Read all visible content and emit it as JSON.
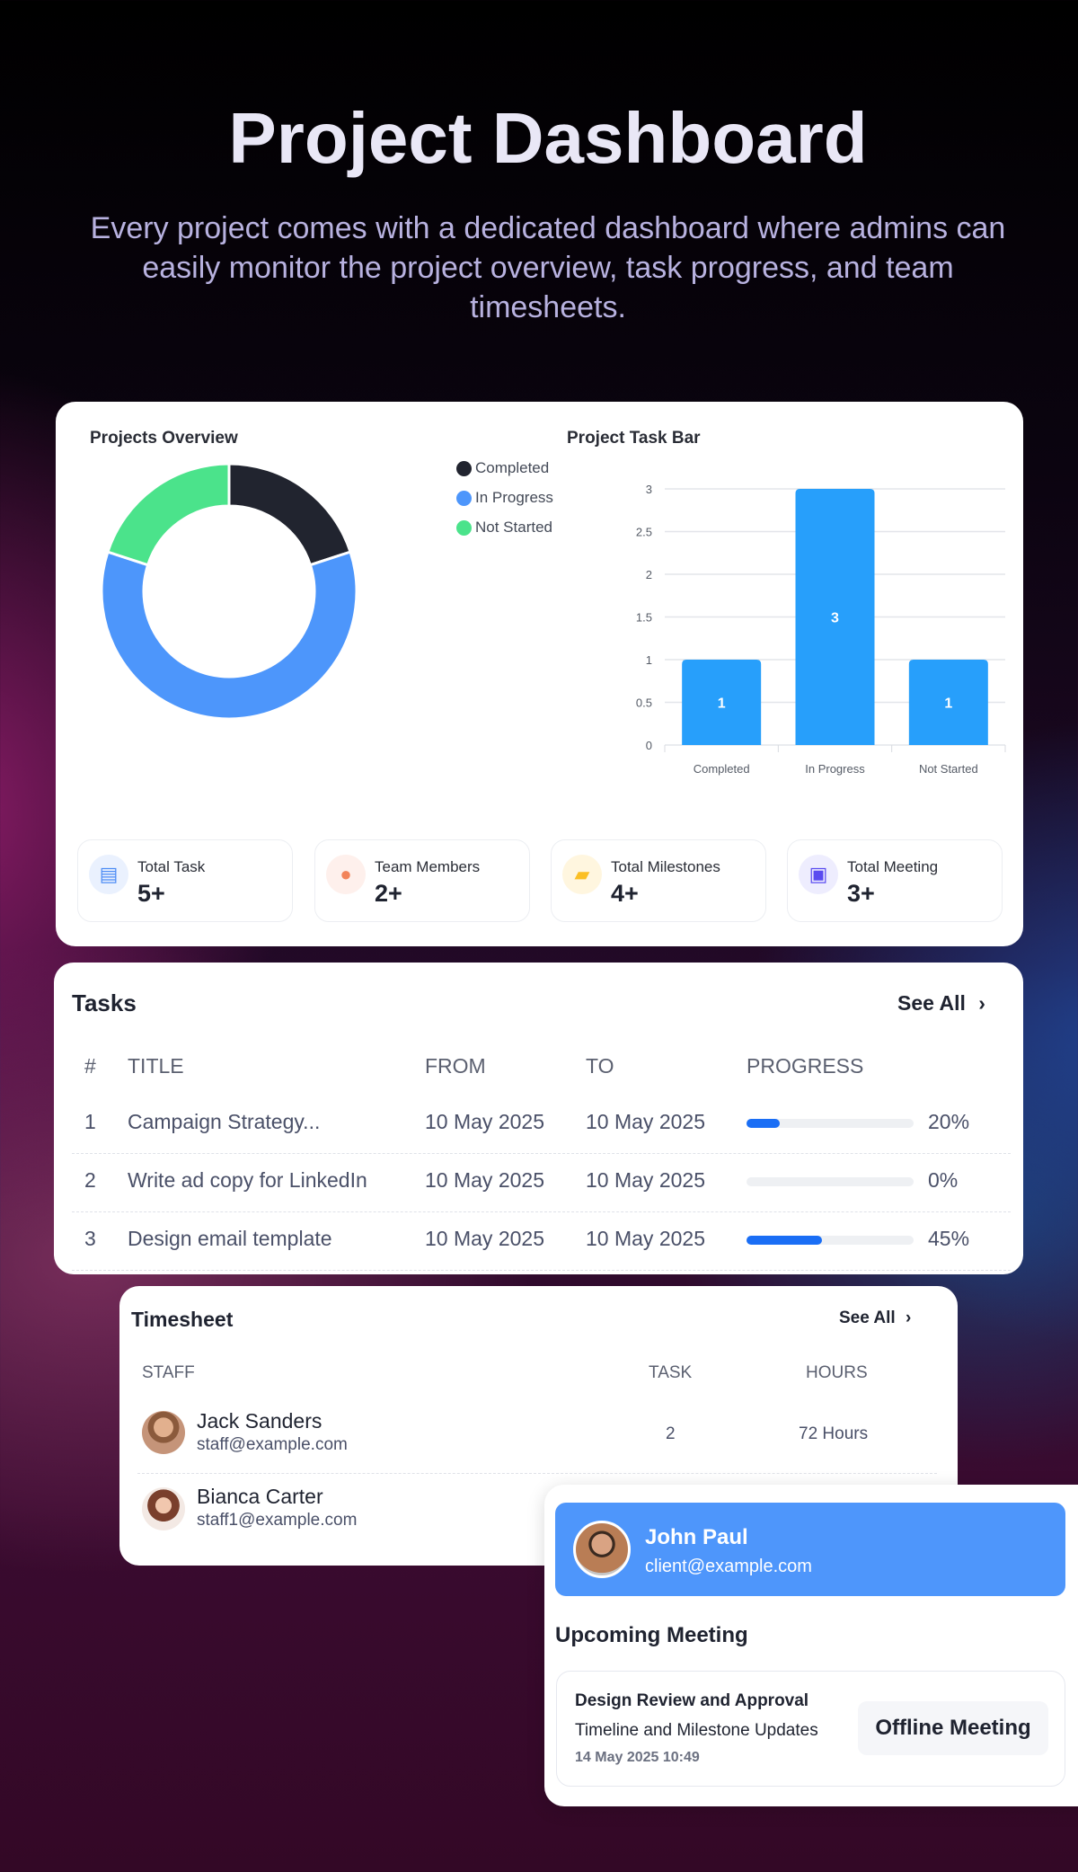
{
  "hero": {
    "title": "Project Dashboard",
    "subtitle": "Every project comes with a dedicated dashboard where admins can easily monitor the project overview, task progress, and team timesheets."
  },
  "overview": {
    "title": "Projects Overview",
    "legend": [
      {
        "label": "Completed",
        "color": "#21242f"
      },
      {
        "label": "In Progress",
        "color": "#4d96fb"
      },
      {
        "label": "Not Started",
        "color": "#4be38b"
      }
    ]
  },
  "chart_data": [
    {
      "type": "pie",
      "title": "Projects Overview",
      "donut": true,
      "categories": [
        "Completed",
        "In Progress",
        "Not Started"
      ],
      "values": [
        1,
        3,
        1
      ],
      "colors": [
        "#21242f",
        "#4d96fb",
        "#4be38b"
      ],
      "legend": "right"
    },
    {
      "type": "bar",
      "title": "Project Task Bar",
      "categories": [
        "Completed",
        "In Progress",
        "Not Started"
      ],
      "values": [
        1,
        3,
        1
      ],
      "data_labels": [
        "1",
        "3",
        "1"
      ],
      "ylim": [
        0,
        3
      ],
      "yticks": [
        "0",
        "0.5",
        "1",
        "1.5",
        "2",
        "2.5",
        "3"
      ],
      "grid": true,
      "color": "#279ffb"
    }
  ],
  "stats": [
    {
      "label": "Total Task",
      "value": "5+",
      "icon": "document-icon",
      "color": "#4d8cf5",
      "bg": "#eaf1fe"
    },
    {
      "label": "Team Members",
      "value": "2+",
      "icon": "users-icon",
      "color": "#f2845a",
      "bg": "#fef0ec"
    },
    {
      "label": "Total Milestones",
      "value": "4+",
      "icon": "bag-icon",
      "color": "#fbbf24",
      "bg": "#fff6df"
    },
    {
      "label": "Total Meeting",
      "value": "3+",
      "icon": "briefcase-icon",
      "color": "#5b4cf0",
      "bg": "#eeedfe"
    }
  ],
  "tasks": {
    "title": "Tasks",
    "see_all": "See All",
    "headers": [
      "#",
      "TITLE",
      "FROM",
      "TO",
      "PROGRESS"
    ],
    "rows": [
      {
        "n": "1",
        "title": "Campaign Strategy...",
        "from": "10 May 2025",
        "to": "10 May 2025",
        "progress": 20,
        "pct": "20%"
      },
      {
        "n": "2",
        "title": "Write ad copy for LinkedIn",
        "from": "10 May 2025",
        "to": "10 May 2025",
        "progress": 0,
        "pct": "0%"
      },
      {
        "n": "3",
        "title": "Design email template",
        "from": "10 May 2025",
        "to": "10 May 2025",
        "progress": 45,
        "pct": "45%"
      }
    ]
  },
  "timesheet": {
    "title": "Timesheet",
    "see_all": "See All",
    "headers": [
      "STAFF",
      "TASK",
      "HOURS"
    ],
    "rows": [
      {
        "name": "Jack Sanders",
        "email": "staff@example.com",
        "task": "2",
        "hours": "72 Hours"
      },
      {
        "name": "Bianca Carter",
        "email": "staff1@example.com"
      }
    ]
  },
  "client": {
    "name": "John Paul",
    "email": "client@example.com"
  },
  "meeting": {
    "heading": "Upcoming Meeting",
    "title": "Design Review and Approval",
    "agenda": "Timeline and Milestone Updates",
    "datetime": "14 May 2025 10:49",
    "type": "Offline Meeting"
  }
}
